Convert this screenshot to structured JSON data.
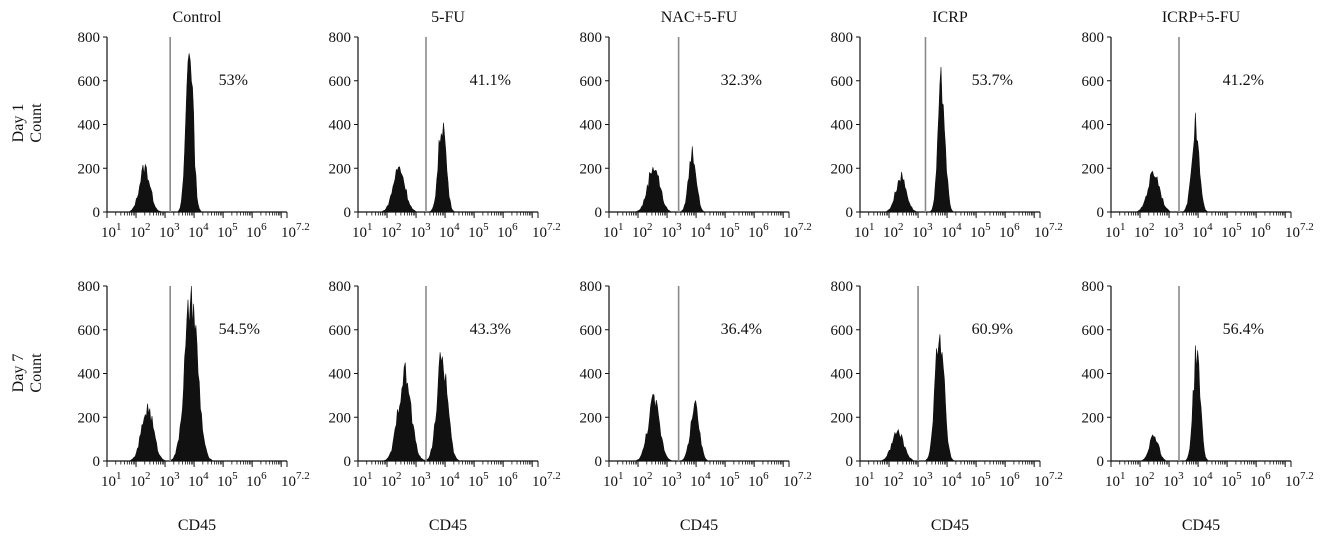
{
  "figure": {
    "row_labels": [
      {
        "line1": "Day 1",
        "line2": "Count"
      },
      {
        "line1": "Day 7",
        "line2": "Count"
      }
    ],
    "column_titles": [
      "Control",
      "5-FU",
      "NAC+5-FU",
      "ICRP",
      "ICRP+5-FU"
    ],
    "x_axis_label": "CD45",
    "y_ticks": [
      "0",
      "200",
      "400",
      "600",
      "800"
    ],
    "x_tick_labels": [
      {
        "base": "10",
        "exp": "1"
      },
      {
        "base": "10",
        "exp": "2"
      },
      {
        "base": "10",
        "exp": "3"
      },
      {
        "base": "10",
        "exp": "4"
      },
      {
        "base": "10",
        "exp": "5"
      },
      {
        "base": "10",
        "exp": "6"
      },
      {
        "base": "10",
        "exp": "7.2"
      }
    ]
  },
  "chart_data": [
    {
      "type": "area",
      "row": 0,
      "col": 0,
      "day": "Day 1",
      "group": "Control",
      "xlabel": "",
      "ylabel": "Count",
      "x_scale": "log",
      "xlim": [
        10,
        15848932
      ],
      "ylim": [
        0,
        800
      ],
      "gate_x": 1500,
      "percent_label": "53%",
      "peaks": [
        {
          "center": 200,
          "height": 200,
          "width_log": 0.18
        },
        {
          "center": 7000,
          "height": 760,
          "width_log": 0.12
        }
      ]
    },
    {
      "type": "area",
      "row": 0,
      "col": 1,
      "day": "Day 1",
      "group": "5-FU",
      "xlabel": "",
      "ylabel": "Count",
      "x_scale": "log",
      "xlim": [
        10,
        15848932
      ],
      "ylim": [
        0,
        800
      ],
      "gate_x": 2200,
      "percent_label": "41.1%",
      "peaks": [
        {
          "center": 260,
          "height": 200,
          "width_log": 0.2
        },
        {
          "center": 8000,
          "height": 410,
          "width_log": 0.13
        }
      ]
    },
    {
      "type": "area",
      "row": 0,
      "col": 2,
      "day": "Day 1",
      "group": "NAC+5-FU",
      "xlabel": "",
      "ylabel": "Count",
      "x_scale": "log",
      "xlim": [
        10,
        15848932
      ],
      "ylim": [
        0,
        800
      ],
      "gate_x": 2500,
      "percent_label": "32.3%",
      "peaks": [
        {
          "center": 350,
          "height": 210,
          "width_log": 0.2
        },
        {
          "center": 7500,
          "height": 270,
          "width_log": 0.13
        }
      ]
    },
    {
      "type": "area",
      "row": 0,
      "col": 3,
      "day": "Day 1",
      "group": "ICRP",
      "xlabel": "",
      "ylabel": "Count",
      "x_scale": "log",
      "xlim": [
        10,
        15848932
      ],
      "ylim": [
        0,
        800
      ],
      "gate_x": 1800,
      "percent_label": "53.7%",
      "peaks": [
        {
          "center": 260,
          "height": 160,
          "width_log": 0.18
        },
        {
          "center": 6500,
          "height": 575,
          "width_log": 0.12
        }
      ]
    },
    {
      "type": "area",
      "row": 0,
      "col": 4,
      "day": "Day 1",
      "group": "ICRP+5-FU",
      "xlabel": "",
      "ylabel": "Count",
      "x_scale": "log",
      "xlim": [
        10,
        15848932
      ],
      "ylim": [
        0,
        800
      ],
      "gate_x": 2200,
      "percent_label": "41.2%",
      "peaks": [
        {
          "center": 300,
          "height": 180,
          "width_log": 0.2
        },
        {
          "center": 8000,
          "height": 390,
          "width_log": 0.13
        }
      ]
    },
    {
      "type": "area",
      "row": 1,
      "col": 0,
      "day": "Day 7",
      "group": "Control",
      "xlabel": "CD45",
      "ylabel": "Count",
      "x_scale": "log",
      "xlim": [
        10,
        15848932
      ],
      "ylim": [
        0,
        800
      ],
      "gate_x": 1500,
      "percent_label": "54.5%",
      "peaks": [
        {
          "center": 250,
          "height": 240,
          "width_log": 0.2
        },
        {
          "center": 8000,
          "height": 720,
          "width_log": 0.22
        }
      ]
    },
    {
      "type": "area",
      "row": 1,
      "col": 1,
      "day": "Day 7",
      "group": "5-FU",
      "xlabel": "CD45",
      "ylabel": "Count",
      "x_scale": "log",
      "xlim": [
        10,
        15848932
      ],
      "ylim": [
        0,
        800
      ],
      "gate_x": 2200,
      "percent_label": "43.3%",
      "peaks": [
        {
          "center": 400,
          "height": 390,
          "width_log": 0.22
        },
        {
          "center": 8000,
          "height": 460,
          "width_log": 0.18
        }
      ]
    },
    {
      "type": "area",
      "row": 1,
      "col": 2,
      "day": "Day 7",
      "group": "NAC+5-FU",
      "xlabel": "CD45",
      "ylabel": "Count",
      "x_scale": "log",
      "xlim": [
        10,
        15848932
      ],
      "ylim": [
        0,
        800
      ],
      "gate_x": 2500,
      "percent_label": "36.4%",
      "peaks": [
        {
          "center": 350,
          "height": 270,
          "width_log": 0.2
        },
        {
          "center": 9000,
          "height": 240,
          "width_log": 0.15
        }
      ]
    },
    {
      "type": "area",
      "row": 1,
      "col": 3,
      "day": "Day 7",
      "group": "ICRP",
      "xlabel": "CD45",
      "ylabel": "Count",
      "x_scale": "log",
      "xlim": [
        10,
        15848932
      ],
      "ylim": [
        0,
        800
      ],
      "gate_x": 1000,
      "percent_label": "60.9%",
      "peaks": [
        {
          "center": 200,
          "height": 130,
          "width_log": 0.2
        },
        {
          "center": 5500,
          "height": 600,
          "width_log": 0.15
        }
      ]
    },
    {
      "type": "area",
      "row": 1,
      "col": 4,
      "day": "Day 7",
      "group": "ICRP+5-FU",
      "xlabel": "CD45",
      "ylabel": "Count",
      "x_scale": "log",
      "xlim": [
        10,
        15848932
      ],
      "ylim": [
        0,
        800
      ],
      "gate_x": 2200,
      "percent_label": "56.4%",
      "peaks": [
        {
          "center": 300,
          "height": 120,
          "width_log": 0.15
        },
        {
          "center": 9000,
          "height": 490,
          "width_log": 0.12
        }
      ]
    }
  ]
}
